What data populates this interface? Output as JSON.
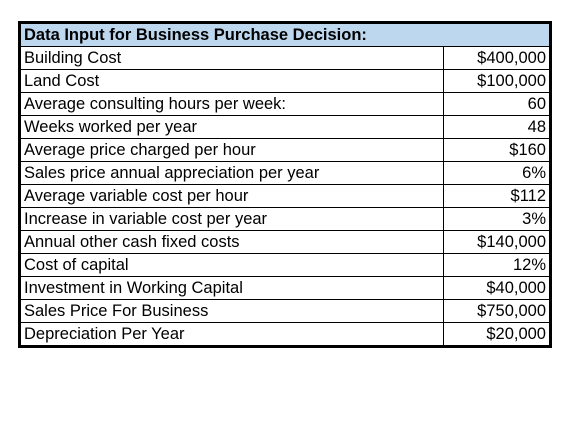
{
  "table": {
    "title": "Data Input for Business Purchase Decision:",
    "header_fill": "#bdd7ee",
    "rows": [
      {
        "label": "Building Cost",
        "value": "$400,000"
      },
      {
        "label": "Land Cost",
        "value": "$100,000"
      },
      {
        "label": "Average consulting hours per week:",
        "value": "60"
      },
      {
        "label": "Weeks worked per year",
        "value": "48"
      },
      {
        "label": "Average price charged per hour",
        "value": "$160"
      },
      {
        "label": "Sales price annual appreciation per year",
        "value": "6%"
      },
      {
        "label": "Average variable cost per hour",
        "value": "$112"
      },
      {
        "label": "Increase in variable cost per year",
        "value": "3%"
      },
      {
        "label": "Annual other cash fixed costs",
        "value": "$140,000"
      },
      {
        "label": "Cost of capital",
        "value": "12%"
      },
      {
        "label": "Investment in Working Capital",
        "value": "$40,000"
      },
      {
        "label": "Sales Price For Business",
        "value": "$750,000"
      },
      {
        "label": "Depreciation Per Year",
        "value": "$20,000"
      }
    ]
  }
}
